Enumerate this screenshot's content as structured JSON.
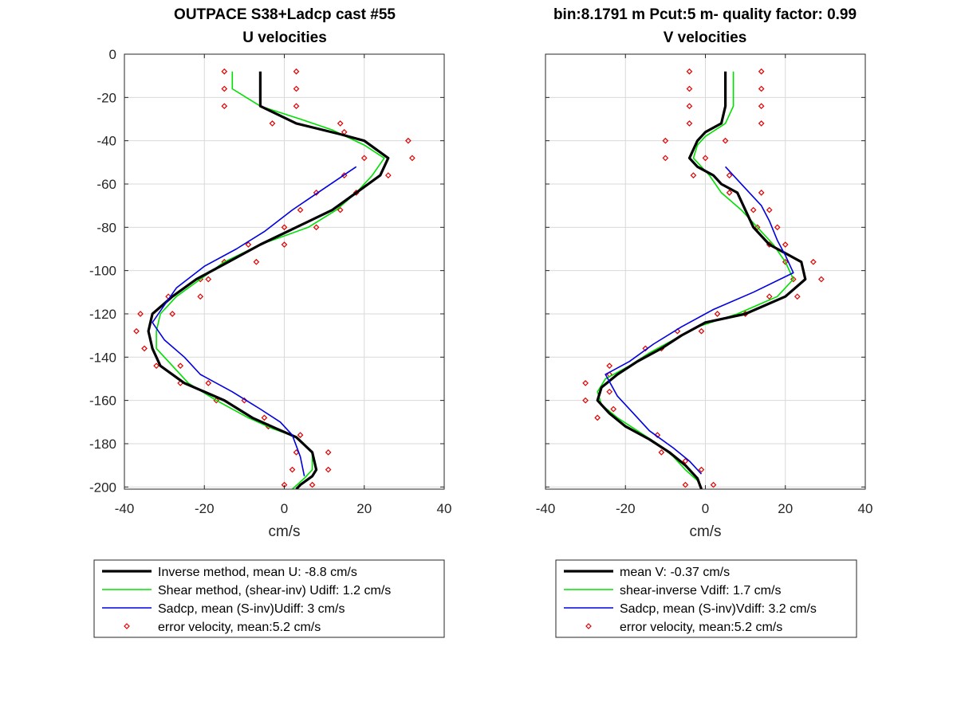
{
  "figure": {
    "left_title_line1": "OUTPACE S38+Ladcp cast #55",
    "left_title_line2": "U velocities",
    "right_title_line1": "bin:8.1791 m  Pcut:5 m- quality factor:  0.99",
    "right_title_line2": "V velocities"
  },
  "colors": {
    "inverse": "#000000",
    "shear": "#00e000",
    "sadcp": "#0000e0",
    "error": "#e00000",
    "grid": "#d9d9d9",
    "axis": "#262626"
  },
  "chart_data": [
    {
      "type": "line",
      "title": "U velocities",
      "xlabel": "cm/s",
      "ylabel": "",
      "xlim": [
        -40,
        40
      ],
      "ylim": [
        -201,
        0
      ],
      "xticks": [
        -40,
        -20,
        0,
        20,
        40
      ],
      "yticks": [
        0,
        -20,
        -40,
        -60,
        -80,
        -100,
        -120,
        -140,
        -160,
        -180,
        -200
      ],
      "xtick_labels": [
        "-40",
        "-20",
        "0",
        "20",
        "40"
      ],
      "ytick_labels": [
        "0",
        "-20",
        "-40",
        "-60",
        "-80",
        "-100",
        "-120",
        "-140",
        "-160",
        "-180",
        "-200"
      ],
      "grid": true,
      "legend_position": "below",
      "series": [
        {
          "name": "Inverse method, mean U:  -8.8 cm/s",
          "style": "thick-line",
          "color_key": "inverse",
          "points": [
            [
              -6,
              -8
            ],
            [
              -6,
              -24
            ],
            [
              3,
              -32
            ],
            [
              14,
              -37
            ],
            [
              20,
              -40
            ],
            [
              26,
              -48
            ],
            [
              24,
              -56
            ],
            [
              18,
              -64
            ],
            [
              12,
              -72
            ],
            [
              3,
              -80
            ],
            [
              -6,
              -88
            ],
            [
              -14,
              -96
            ],
            [
              -22,
              -104
            ],
            [
              -28,
              -112
            ],
            [
              -33,
              -120
            ],
            [
              -34,
              -128
            ],
            [
              -33,
              -136
            ],
            [
              -31,
              -144
            ],
            [
              -25,
              -152
            ],
            [
              -15,
              -160
            ],
            [
              -8,
              -168
            ],
            [
              -2,
              -173
            ],
            [
              3,
              -177
            ],
            [
              7,
              -184
            ],
            [
              8,
              -192
            ],
            [
              7,
              -195
            ],
            [
              4,
              -199
            ],
            [
              3,
              -201
            ]
          ]
        },
        {
          "name": "Shear method, (shear-inv)  Udiff:  1.2 cm/s",
          "style": "line",
          "color_key": "shear",
          "points": [
            [
              -13,
              -8
            ],
            [
              -13,
              -16
            ],
            [
              -6,
              -24
            ],
            [
              4,
              -30
            ],
            [
              12,
              -35
            ],
            [
              20,
              -42
            ],
            [
              25,
              -48
            ],
            [
              22,
              -56
            ],
            [
              18,
              -64
            ],
            [
              13,
              -72
            ],
            [
              6,
              -80
            ],
            [
              -6,
              -88
            ],
            [
              -15,
              -96
            ],
            [
              -21,
              -104
            ],
            [
              -27,
              -112
            ],
            [
              -31,
              -120
            ],
            [
              -32,
              -128
            ],
            [
              -32,
              -136
            ],
            [
              -28,
              -144
            ],
            [
              -24,
              -152
            ],
            [
              -17,
              -160
            ],
            [
              -9,
              -168
            ],
            [
              -3,
              -173
            ],
            [
              3,
              -177
            ],
            [
              7,
              -184
            ],
            [
              7,
              -192
            ],
            [
              5,
              -196
            ],
            [
              2,
              -201
            ]
          ]
        },
        {
          "name": "Sadcp, mean (S-inv)Udiff: 3 cm/s",
          "style": "line",
          "color_key": "sadcp",
          "points": [
            [
              18,
              -52
            ],
            [
              10,
              -62
            ],
            [
              2,
              -72
            ],
            [
              -5,
              -82
            ],
            [
              -12,
              -90
            ],
            [
              -20,
              -98
            ],
            [
              -27,
              -108
            ],
            [
              -30,
              -116
            ],
            [
              -33,
              -124
            ],
            [
              -30,
              -132
            ],
            [
              -25,
              -140
            ],
            [
              -21,
              -148
            ],
            [
              -13,
              -156
            ],
            [
              -6,
              -164
            ],
            [
              -1,
              -170
            ],
            [
              2,
              -176
            ],
            [
              4,
              -186
            ],
            [
              5,
              -195
            ]
          ]
        },
        {
          "name": "error velocity, mean:5.2 cm/s",
          "style": "markers",
          "color_key": "error",
          "points": [
            [
              -15,
              -8
            ],
            [
              3,
              -8
            ],
            [
              -15,
              -16
            ],
            [
              3,
              -16
            ],
            [
              -15,
              -24
            ],
            [
              3,
              -24
            ],
            [
              -3,
              -32
            ],
            [
              14,
              -32
            ],
            [
              15,
              -36
            ],
            [
              31,
              -40
            ],
            [
              20,
              -48
            ],
            [
              32,
              -48
            ],
            [
              15,
              -56
            ],
            [
              26,
              -56
            ],
            [
              8,
              -64
            ],
            [
              18,
              -64
            ],
            [
              4,
              -72
            ],
            [
              14,
              -72
            ],
            [
              0,
              -80
            ],
            [
              8,
              -80
            ],
            [
              -9,
              -88
            ],
            [
              0,
              -88
            ],
            [
              -15,
              -96
            ],
            [
              -7,
              -96
            ],
            [
              -21,
              -104
            ],
            [
              -19,
              -104
            ],
            [
              -29,
              -112
            ],
            [
              -21,
              -112
            ],
            [
              -36,
              -120
            ],
            [
              -28,
              -120
            ],
            [
              -37,
              -128
            ],
            [
              -35,
              -136
            ],
            [
              -32,
              -144
            ],
            [
              -26,
              -144
            ],
            [
              -26,
              -152
            ],
            [
              -19,
              -152
            ],
            [
              -17,
              -160
            ],
            [
              -10,
              -160
            ],
            [
              -5,
              -168
            ],
            [
              -4,
              -172
            ],
            [
              4,
              -176
            ],
            [
              3,
              -184
            ],
            [
              11,
              -184
            ],
            [
              2,
              -192
            ],
            [
              11,
              -192
            ],
            [
              0,
              -199
            ],
            [
              7,
              -199
            ]
          ]
        }
      ]
    },
    {
      "type": "line",
      "title": "V velocities",
      "xlabel": "cm/s",
      "ylabel": "",
      "xlim": [
        -40,
        40
      ],
      "ylim": [
        -201,
        0
      ],
      "xticks": [
        -40,
        -20,
        0,
        20,
        40
      ],
      "yticks": [
        0,
        -20,
        -40,
        -60,
        -80,
        -100,
        -120,
        -140,
        -160,
        -180,
        -200
      ],
      "xtick_labels": [
        "-40",
        "-20",
        "0",
        "20",
        "40"
      ],
      "ytick_labels": [],
      "grid": true,
      "legend_position": "below",
      "series": [
        {
          "name": "mean V:  -0.37 cm/s",
          "style": "thick-line",
          "color_key": "inverse",
          "points": [
            [
              5,
              -8
            ],
            [
              5,
              -24
            ],
            [
              4,
              -32
            ],
            [
              0,
              -36
            ],
            [
              -2,
              -40
            ],
            [
              -4,
              -48
            ],
            [
              -2,
              -52
            ],
            [
              2,
              -56
            ],
            [
              4,
              -60
            ],
            [
              8,
              -64
            ],
            [
              10,
              -72
            ],
            [
              12,
              -80
            ],
            [
              16,
              -88
            ],
            [
              20,
              -92
            ],
            [
              24,
              -96
            ],
            [
              25,
              -104
            ],
            [
              20,
              -112
            ],
            [
              10,
              -120
            ],
            [
              0,
              -124
            ],
            [
              -6,
              -130
            ],
            [
              -11,
              -136
            ],
            [
              -17,
              -142
            ],
            [
              -22,
              -148
            ],
            [
              -26,
              -154
            ],
            [
              -27,
              -160
            ],
            [
              -24,
              -166
            ],
            [
              -20,
              -172
            ],
            [
              -14,
              -178
            ],
            [
              -9,
              -184
            ],
            [
              -5,
              -190
            ],
            [
              -2,
              -196
            ],
            [
              -1,
              -201
            ]
          ]
        },
        {
          "name": "shear-inverse Vdiff:  1.7 cm/s",
          "style": "line",
          "color_key": "shear",
          "points": [
            [
              7,
              -8
            ],
            [
              7,
              -24
            ],
            [
              5,
              -32
            ],
            [
              0,
              -38
            ],
            [
              -2,
              -42
            ],
            [
              -3,
              -48
            ],
            [
              1,
              -56
            ],
            [
              4,
              -64
            ],
            [
              9,
              -72
            ],
            [
              13,
              -80
            ],
            [
              17,
              -88
            ],
            [
              20,
              -96
            ],
            [
              22,
              -104
            ],
            [
              18,
              -112
            ],
            [
              8,
              -120
            ],
            [
              -2,
              -126
            ],
            [
              -8,
              -132
            ],
            [
              -14,
              -138
            ],
            [
              -19,
              -144
            ],
            [
              -25,
              -150
            ],
            [
              -27,
              -156
            ],
            [
              -26,
              -162
            ],
            [
              -22,
              -168
            ],
            [
              -17,
              -174
            ],
            [
              -12,
              -180
            ],
            [
              -8,
              -186
            ],
            [
              -5,
              -192
            ],
            [
              -2,
              -197
            ],
            [
              -1,
              -201
            ]
          ]
        },
        {
          "name": "Sadcp, mean (S-inv)Vdiff: 3.2 cm/s",
          "style": "line",
          "color_key": "sadcp",
          "points": [
            [
              5,
              -52
            ],
            [
              10,
              -62
            ],
            [
              14,
              -70
            ],
            [
              16,
              -77
            ],
            [
              18,
              -86
            ],
            [
              20,
              -93
            ],
            [
              22,
              -101
            ],
            [
              12,
              -110
            ],
            [
              2,
              -118
            ],
            [
              -6,
              -126
            ],
            [
              -13,
              -134
            ],
            [
              -19,
              -142
            ],
            [
              -25,
              -148
            ],
            [
              -22,
              -158
            ],
            [
              -18,
              -166
            ],
            [
              -14,
              -174
            ],
            [
              -8,
              -182
            ],
            [
              -4,
              -188
            ],
            [
              -1,
              -194
            ]
          ]
        },
        {
          "name": "error velocity, mean:5.2 cm/s",
          "style": "markers",
          "color_key": "error",
          "points": [
            [
              -4,
              -8
            ],
            [
              14,
              -8
            ],
            [
              -4,
              -16
            ],
            [
              14,
              -16
            ],
            [
              -4,
              -24
            ],
            [
              14,
              -24
            ],
            [
              -4,
              -32
            ],
            [
              14,
              -32
            ],
            [
              -10,
              -40
            ],
            [
              5,
              -40
            ],
            [
              -10,
              -48
            ],
            [
              0,
              -48
            ],
            [
              -3,
              -56
            ],
            [
              6,
              -56
            ],
            [
              14,
              -64
            ],
            [
              6,
              -64
            ],
            [
              16,
              -72
            ],
            [
              12,
              -72
            ],
            [
              18,
              -80
            ],
            [
              13,
              -80
            ],
            [
              20,
              -88
            ],
            [
              16,
              -88
            ],
            [
              27,
              -96
            ],
            [
              20,
              -96
            ],
            [
              29,
              -104
            ],
            [
              22,
              -104
            ],
            [
              23,
              -112
            ],
            [
              16,
              -112
            ],
            [
              10,
              -120
            ],
            [
              3,
              -120
            ],
            [
              -7,
              -128
            ],
            [
              -1,
              -128
            ],
            [
              -15,
              -136
            ],
            [
              -11,
              -136
            ],
            [
              -24,
              -144
            ],
            [
              -24,
              -148
            ],
            [
              -30,
              -152
            ],
            [
              -24,
              -156
            ],
            [
              -30,
              -160
            ],
            [
              -23,
              -164
            ],
            [
              -27,
              -168
            ],
            [
              -12,
              -176
            ],
            [
              -11,
              -184
            ],
            [
              -5,
              -188
            ],
            [
              -1,
              -192
            ],
            [
              -5,
              -199
            ],
            [
              2,
              -199
            ]
          ]
        }
      ]
    }
  ]
}
